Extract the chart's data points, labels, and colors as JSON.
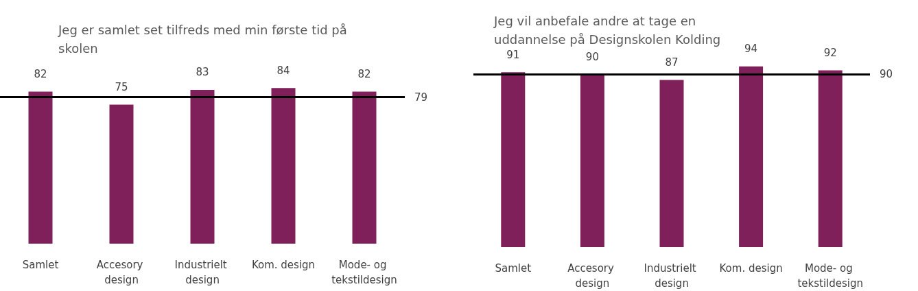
{
  "chart_data": [
    {
      "type": "bar",
      "title": "Jeg er samlet set tilfreds med min første tid på skolen",
      "categories": [
        "Samlet",
        "Accesory design",
        "Industrielt design",
        "Kom. design",
        "Mode- og tekstildesign"
      ],
      "values": [
        82,
        75,
        83,
        84,
        82
      ],
      "color": "#80205b",
      "data_labels": true,
      "ref_lines": [
        {
          "axis": "y",
          "value": 79,
          "label": "79",
          "color": "#000000"
        }
      ]
    },
    {
      "type": "bar",
      "title": "Jeg vil anbefale andre at tage en uddannelse på Designskolen Kolding",
      "categories": [
        "Samlet",
        "Accesory design",
        "Industrielt design",
        "Kom. design",
        "Mode- og tekstildesign"
      ],
      "values": [
        91,
        90,
        87,
        94,
        92
      ],
      "color": "#80205b",
      "data_labels": true,
      "ref_lines": [
        {
          "axis": "y",
          "value": 90,
          "label": "90",
          "color": "#000000"
        }
      ]
    }
  ]
}
